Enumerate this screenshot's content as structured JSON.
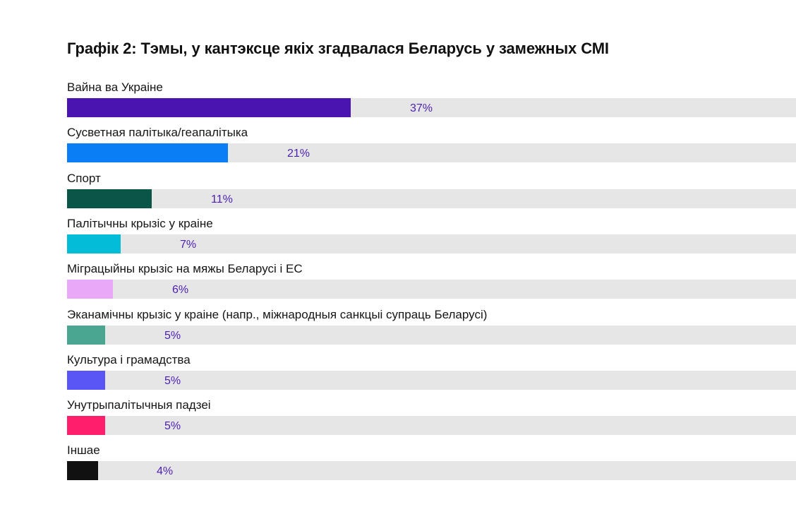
{
  "chart_data": {
    "type": "bar",
    "orientation": "horizontal",
    "title": "Графік 2: Тэмы, у кантэксце якіх згадвалася Беларусь у замежных СМІ",
    "xlabel": "",
    "ylabel": "",
    "xlim": [
      0,
      95
    ],
    "grid": false,
    "legend": "none",
    "value_label_color": "#4c1fb0",
    "track_color": "#e6e6e6",
    "bars": [
      {
        "category": "Вайна ва Украіне",
        "value": 37,
        "label": "37%",
        "color": "#4a14b0"
      },
      {
        "category": "Сусветная палітыка/геапалітыка",
        "value": 21,
        "label": "21%",
        "color": "#0a7ef5"
      },
      {
        "category": "Спорт",
        "value": 11,
        "label": "11%",
        "color": "#0a5448"
      },
      {
        "category": "Палітычны крызіс у краіне",
        "value": 7,
        "label": "7%",
        "color": "#03bcd8"
      },
      {
        "category": "Міграцыйны крызіс на мяжы Беларусі і ЕС",
        "value": 6,
        "label": "6%",
        "color": "#eaa9f8"
      },
      {
        "category": "Эканамічны крызіс у краіне (напр., міжнародныя санкцыі супраць Беларусі)",
        "value": 5,
        "label": "5%",
        "color": "#4aa690"
      },
      {
        "category": "Культура і грамадства",
        "value": 5,
        "label": "5%",
        "color": "#5a55f5"
      },
      {
        "category": "Унутрыпалітычныя падзеі",
        "value": 5,
        "label": "5%",
        "color": "#ff1e6b"
      },
      {
        "category": "Іншае",
        "value": 4,
        "label": "4%",
        "color": "#111111"
      }
    ]
  }
}
